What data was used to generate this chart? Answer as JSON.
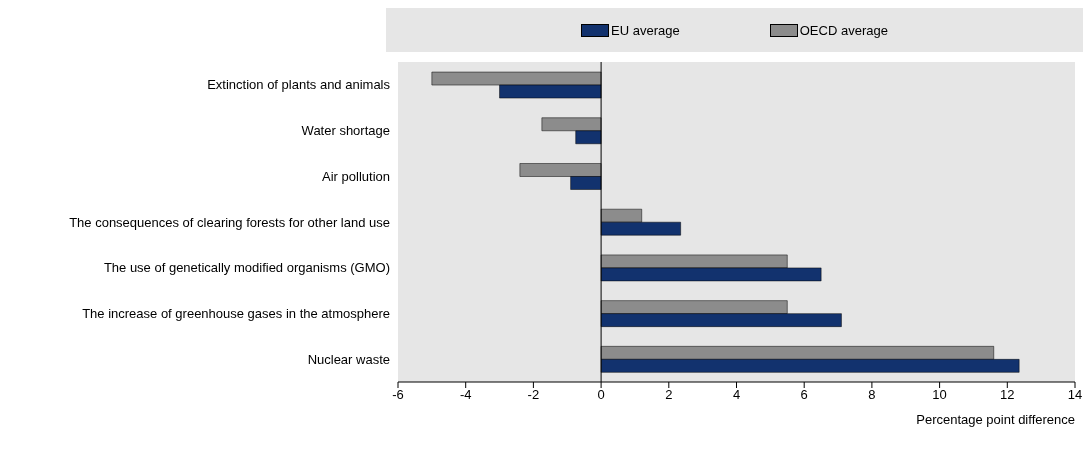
{
  "chart_data": {
    "type": "bar",
    "orientation": "horizontal",
    "xlabel": "Percentage point difference",
    "categories": [
      "Extinction of plants and animals",
      "Water shortage",
      "Air pollution",
      "The consequences of clearing forests for other land use",
      "The use of genetically modified organisms (GMO)",
      "The increase of greenhouse gases in the atmosphere",
      "Nuclear waste"
    ],
    "series": [
      {
        "name": "EU average",
        "color": "#12326e",
        "values": [
          -3.0,
          -0.75,
          -0.9,
          2.35,
          6.5,
          7.1,
          12.35
        ]
      },
      {
        "name": "OECD average",
        "color": "#8c8c8c",
        "values": [
          -5.0,
          -1.75,
          -2.4,
          1.2,
          5.5,
          5.5,
          11.6
        ]
      }
    ],
    "xlim": [
      -6,
      14
    ],
    "xticks": [
      -6,
      -4,
      -2,
      0,
      2,
      4,
      6,
      8,
      10,
      12,
      14
    ],
    "ref_lines": [
      {
        "axis": "x",
        "value": 0,
        "color": "#000000"
      }
    ],
    "grid": false,
    "legend": "top"
  }
}
